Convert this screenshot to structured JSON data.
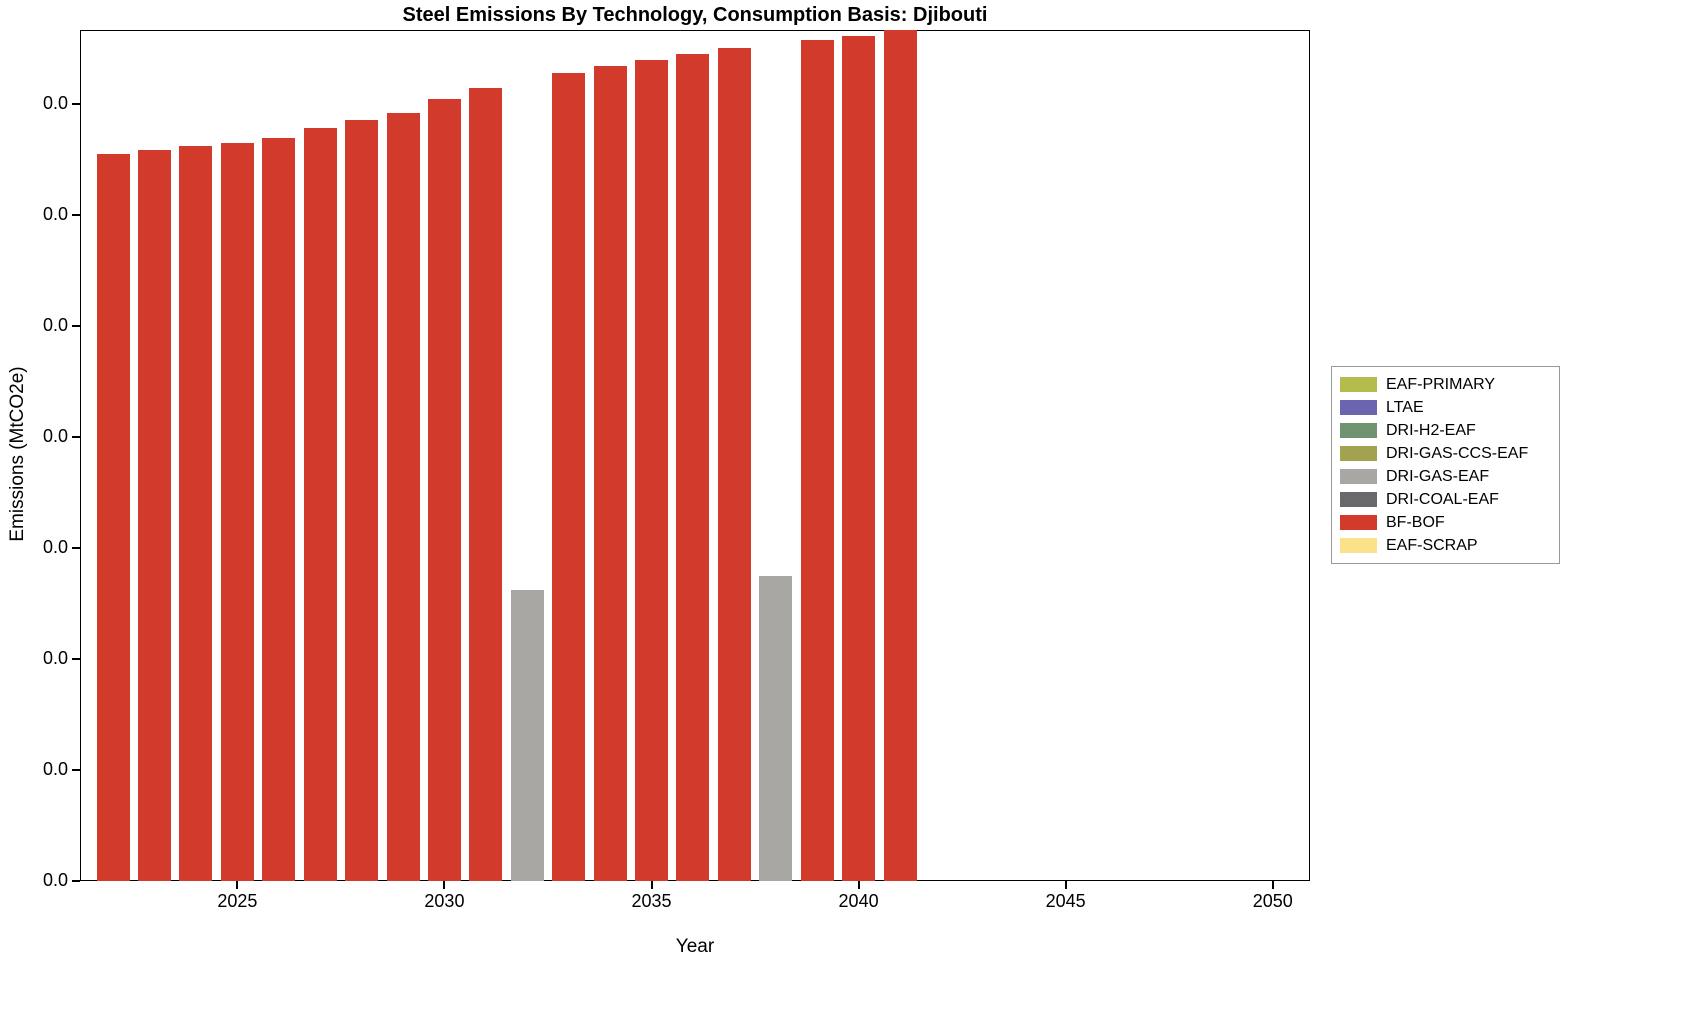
{
  "chart_data": {
    "type": "bar",
    "title": "Steel Emissions By Technology, Consumption Basis: Djibouti",
    "xlabel": "Year",
    "ylabel": "Emissions (MtCO2e)",
    "xlim": [
      2021.2,
      2050.9
    ],
    "ylim": [
      0,
      1
    ],
    "ylim_note": "All y-axis tick labels read 0.0 (values are near zero); bar values below are fractions of the axis maximum estimated from pixel heights",
    "x_ticks": [
      2025,
      2030,
      2035,
      2040,
      2045,
      2050
    ],
    "y_ticks": {
      "count": 8,
      "label": "0.0",
      "spacing_fraction": 0.1304
    },
    "grid": false,
    "bars": [
      {
        "year": 2022,
        "tech": "BF-BOF",
        "value": 0.854
      },
      {
        "year": 2023,
        "tech": "BF-BOF",
        "value": 0.859
      },
      {
        "year": 2024,
        "tech": "BF-BOF",
        "value": 0.864
      },
      {
        "year": 2025,
        "tech": "BF-BOF",
        "value": 0.867
      },
      {
        "year": 2026,
        "tech": "BF-BOF",
        "value": 0.873
      },
      {
        "year": 2027,
        "tech": "BF-BOF",
        "value": 0.885
      },
      {
        "year": 2028,
        "tech": "BF-BOF",
        "value": 0.894
      },
      {
        "year": 2029,
        "tech": "BF-BOF",
        "value": 0.902
      },
      {
        "year": 2030,
        "tech": "BF-BOF",
        "value": 0.919
      },
      {
        "year": 2031,
        "tech": "BF-BOF",
        "value": 0.932
      },
      {
        "year": 2032,
        "tech": "DRI-GAS-EAF",
        "value": 0.342
      },
      {
        "year": 2033,
        "tech": "BF-BOF",
        "value": 0.949
      },
      {
        "year": 2034,
        "tech": "BF-BOF",
        "value": 0.958
      },
      {
        "year": 2035,
        "tech": "BF-BOF",
        "value": 0.965
      },
      {
        "year": 2036,
        "tech": "BF-BOF",
        "value": 0.972
      },
      {
        "year": 2037,
        "tech": "BF-BOF",
        "value": 0.979
      },
      {
        "year": 2038,
        "tech": "DRI-GAS-EAF",
        "value": 0.358
      },
      {
        "year": 2039,
        "tech": "BF-BOF",
        "value": 0.988
      },
      {
        "year": 2040,
        "tech": "BF-BOF",
        "value": 0.993
      },
      {
        "year": 2041,
        "tech": "BF-BOF",
        "value": 1.0
      }
    ],
    "legend": {
      "position": "right-outside",
      "entries": [
        {
          "label": "EAF-PRIMARY",
          "color": "#b4bd4c"
        },
        {
          "label": "LTAE",
          "color": "#6b64af"
        },
        {
          "label": "DRI-H2-EAF",
          "color": "#6f9370"
        },
        {
          "label": "DRI-GAS-CCS-EAF",
          "color": "#a3a24e"
        },
        {
          "label": "DRI-GAS-EAF",
          "color": "#a9a7a4"
        },
        {
          "label": "DRI-COAL-EAF",
          "color": "#69686a"
        },
        {
          "label": "BF-BOF",
          "color": "#d23a2c"
        },
        {
          "label": "EAF-SCRAP",
          "color": "#fce18b"
        }
      ]
    }
  }
}
